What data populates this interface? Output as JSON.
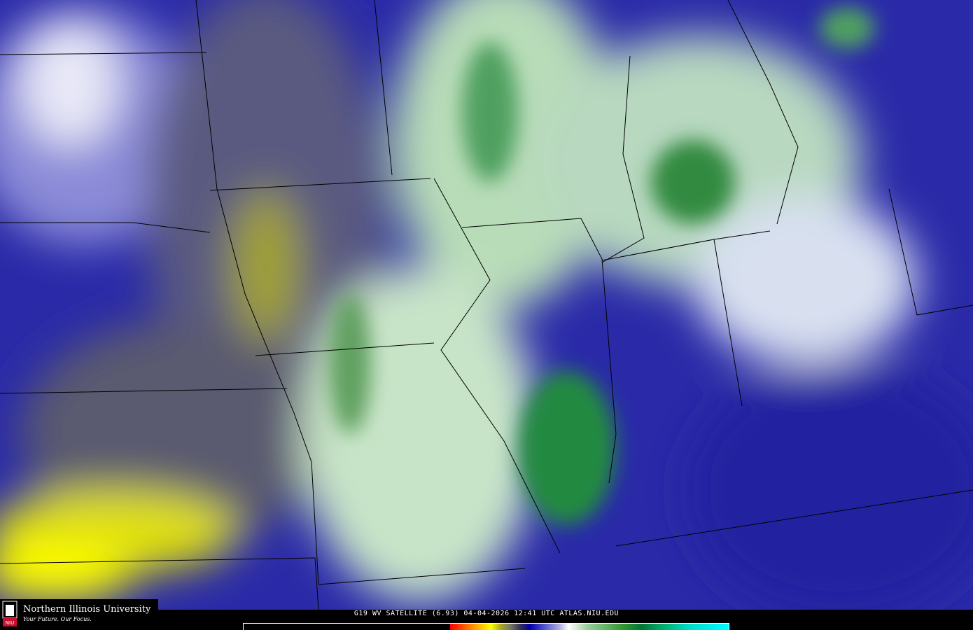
{
  "caption": "G19 WV SATELLITE (6.93) 04-04-2026 12:41 UTC  ATLAS.NIU.EDU",
  "logo": {
    "name": "Northern Illinois University",
    "tagline": "Your Future. Our Focus.",
    "mark": "NIU"
  },
  "colors": {
    "dry": "#ffff00",
    "moist": "#1a1a9a",
    "clouds": "#ffffff",
    "deep_moisture": "#007a30"
  }
}
